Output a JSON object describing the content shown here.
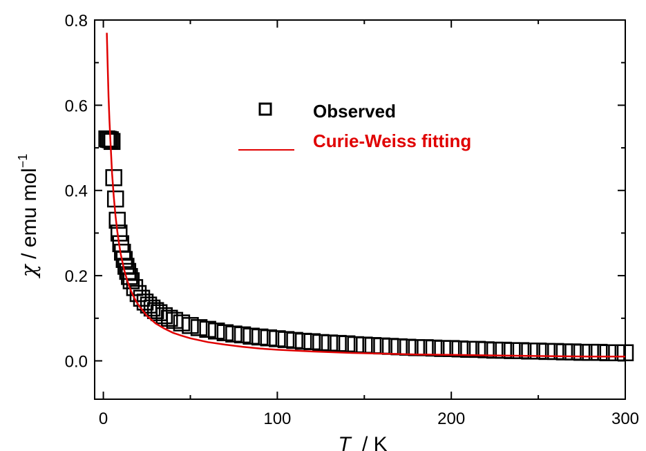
{
  "chart_data": {
    "type": "scatter",
    "xlabel": {
      "var": "T",
      "unit": "K"
    },
    "ylabel": {
      "var": "χ",
      "unit": "emu mol",
      "unit_sup": "−1"
    },
    "xlim": [
      -5,
      300
    ],
    "ylim": [
      -0.09,
      0.8
    ],
    "x_ticks": [
      0,
      100,
      200,
      300
    ],
    "x_tick_labels": [
      "0",
      "100",
      "200",
      "300"
    ],
    "y_ticks": [
      0.0,
      0.2,
      0.4,
      0.6,
      0.8
    ],
    "y_tick_labels": [
      "0.0",
      "0.2",
      "0.4",
      "0.6",
      "0.8"
    ],
    "grid": false,
    "legend": {
      "position": "top-center",
      "entries": [
        {
          "label": "Observed",
          "marker": "open-square",
          "color": "#000000"
        },
        {
          "label": "Curie-Weiss fitting",
          "marker": "line",
          "color": "#e00000"
        }
      ]
    },
    "series": [
      {
        "name": "Observed",
        "style": "open-square",
        "color": "#000000",
        "x": [
          2,
          3,
          4,
          5,
          6,
          7,
          8,
          9,
          10,
          11,
          12,
          13,
          14,
          15,
          16,
          18,
          20,
          22,
          24,
          26,
          28,
          30,
          32,
          35,
          38,
          41,
          45,
          50,
          55,
          60,
          65,
          70,
          75,
          80,
          85,
          90,
          95,
          100,
          105,
          110,
          115,
          120,
          125,
          130,
          135,
          140,
          145,
          150,
          155,
          160,
          165,
          170,
          175,
          180,
          185,
          190,
          195,
          200,
          205,
          210,
          215,
          220,
          225,
          230,
          235,
          240,
          245,
          250,
          255,
          260,
          265,
          270,
          275,
          280,
          285,
          290,
          295,
          300
        ],
        "y": [
          0.521,
          0.52,
          0.519,
          0.515,
          0.43,
          0.38,
          0.33,
          0.3,
          0.275,
          0.255,
          0.238,
          0.222,
          0.21,
          0.198,
          0.188,
          0.172,
          0.158,
          0.147,
          0.138,
          0.131,
          0.124,
          0.118,
          0.113,
          0.106,
          0.1,
          0.095,
          0.089,
          0.083,
          0.078,
          0.074,
          0.07,
          0.066,
          0.063,
          0.061,
          0.058,
          0.056,
          0.054,
          0.052,
          0.05,
          0.048,
          0.046,
          0.045,
          0.043,
          0.042,
          0.041,
          0.04,
          0.038,
          0.037,
          0.036,
          0.035,
          0.034,
          0.033,
          0.032,
          0.031,
          0.031,
          0.03,
          0.029,
          0.029,
          0.028,
          0.027,
          0.027,
          0.026,
          0.025,
          0.025,
          0.024,
          0.024,
          0.023,
          0.023,
          0.022,
          0.022,
          0.021,
          0.021,
          0.02,
          0.02,
          0.02,
          0.019,
          0.019,
          0.019
        ]
      },
      {
        "name": "Curie-Weiss fitting",
        "style": "line",
        "color": "#e00000",
        "x": [
          2,
          2.5,
          3,
          3.5,
          4,
          5,
          6,
          7,
          8,
          9,
          10,
          12,
          14,
          16,
          18,
          20,
          25,
          30,
          35,
          40,
          45,
          50,
          60,
          70,
          80,
          90,
          100,
          120,
          140,
          160,
          180,
          200,
          220,
          240,
          260,
          280,
          300
        ],
        "y": [
          0.77,
          0.69,
          0.62,
          0.565,
          0.52,
          0.44,
          0.385,
          0.34,
          0.305,
          0.275,
          0.25,
          0.213,
          0.185,
          0.163,
          0.146,
          0.132,
          0.106,
          0.088,
          0.076,
          0.066,
          0.059,
          0.053,
          0.044,
          0.038,
          0.033,
          0.029,
          0.026,
          0.022,
          0.019,
          0.017,
          0.015,
          0.014,
          0.013,
          0.012,
          0.011,
          0.01,
          0.01
        ]
      }
    ]
  }
}
